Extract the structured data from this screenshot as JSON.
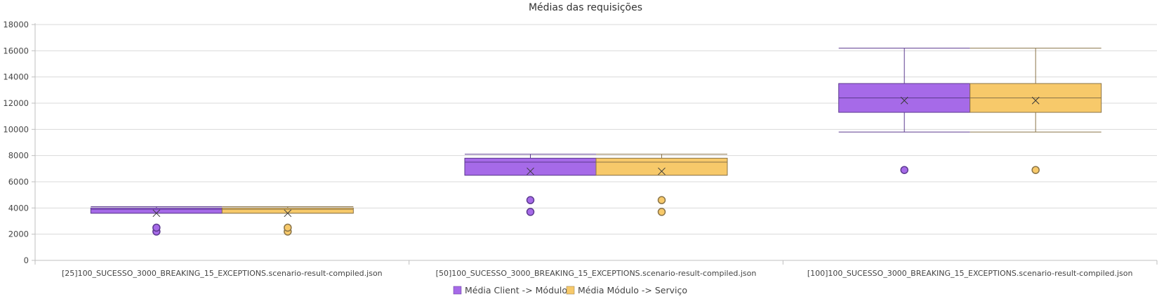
{
  "chart_data": {
    "type": "boxplot",
    "title": "Médias das requisições",
    "xlabel": "",
    "ylabel": "",
    "ylim": [
      0,
      18000
    ],
    "yticks": [
      0,
      2000,
      4000,
      6000,
      8000,
      10000,
      12000,
      14000,
      16000,
      18000
    ],
    "grid": true,
    "legend_position": "bottom",
    "categories": [
      "[25]100_SUCESSO_3000_BREAKING_15_EXCEPTIONS.scenario-result-compiled.json",
      "[50]100_SUCESSO_3000_BREAKING_15_EXCEPTIONS.scenario-result-compiled.json",
      "[100]100_SUCESSO_3000_BREAKING_15_EXCEPTIONS.scenario-result-compiled.json"
    ],
    "series": [
      {
        "name": "Média Client -> Módulo",
        "color": "#a66ae8",
        "stroke": "#5c3a8f",
        "boxes": [
          {
            "min": 3600,
            "q1": 3600,
            "median": 3900,
            "q3": 4000,
            "max": 4100,
            "mean": 3600,
            "outliers": [
              2200,
              2500
            ]
          },
          {
            "min": 6500,
            "q1": 6500,
            "median": 7500,
            "q3": 7800,
            "max": 8100,
            "mean": 6800,
            "outliers": [
              3700,
              4600
            ]
          },
          {
            "min": 9800,
            "q1": 11300,
            "median": 12400,
            "q3": 13500,
            "max": 16200,
            "mean": 12200,
            "outliers": [
              6900
            ]
          }
        ]
      },
      {
        "name": "Média Módulo -> Serviço",
        "color": "#f7c96a",
        "stroke": "#8a7448",
        "boxes": [
          {
            "min": 3600,
            "q1": 3600,
            "median": 3900,
            "q3": 4000,
            "max": 4100,
            "mean": 3600,
            "outliers": [
              2200,
              2500
            ]
          },
          {
            "min": 6500,
            "q1": 6500,
            "median": 7500,
            "q3": 7800,
            "max": 8100,
            "mean": 6800,
            "outliers": [
              3700,
              4600
            ]
          },
          {
            "min": 9800,
            "q1": 11300,
            "median": 12400,
            "q3": 13500,
            "max": 16200,
            "mean": 12200,
            "outliers": [
              6900
            ]
          }
        ]
      }
    ]
  }
}
